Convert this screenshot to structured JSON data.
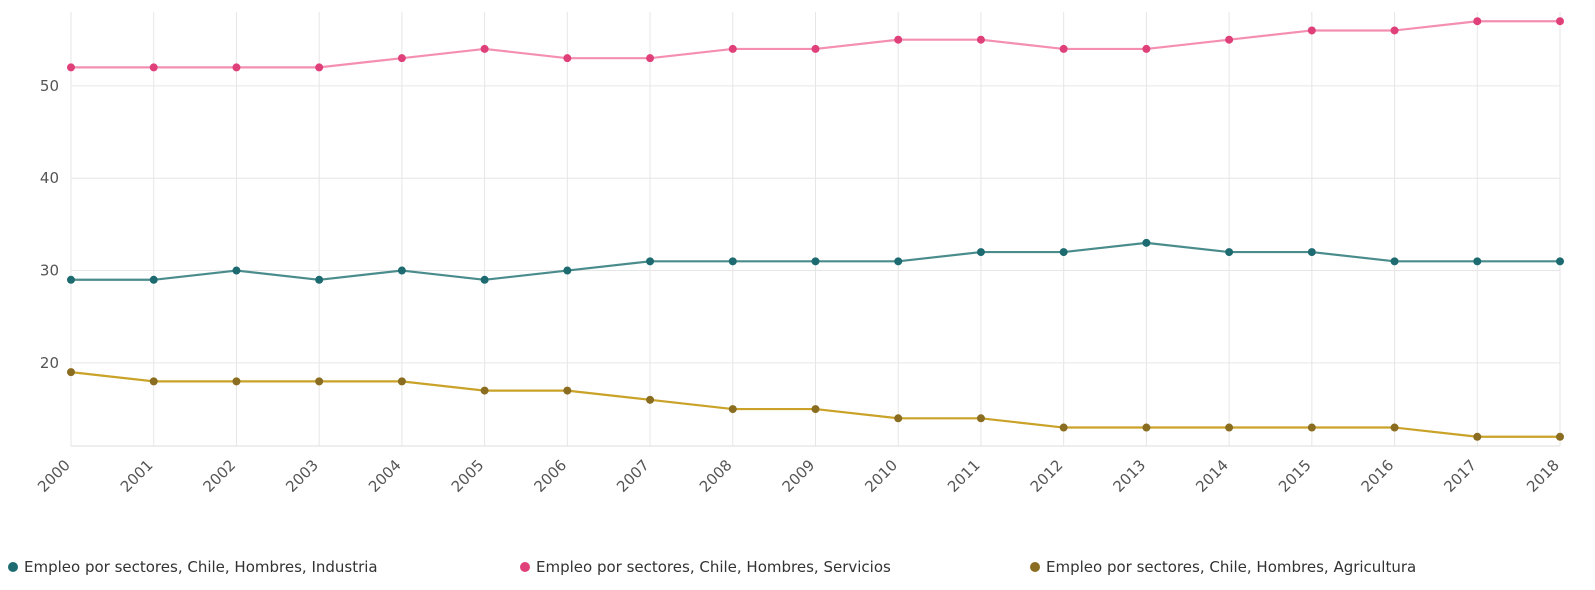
{
  "chart_data": {
    "type": "line",
    "x": [
      "2000",
      "2001",
      "2002",
      "2003",
      "2004",
      "2005",
      "2006",
      "2007",
      "2008",
      "2009",
      "2010",
      "2011",
      "2012",
      "2013",
      "2014",
      "2015",
      "2016",
      "2017",
      "2018"
    ],
    "ylim": [
      11,
      58
    ],
    "yticks": [
      20,
      30,
      40,
      50
    ],
    "grid": true,
    "legend_position": "bottom",
    "series": [
      {
        "name": "Empleo por sectores, Chile, Hombres, Industria",
        "line_color": "#4a8c8c",
        "dot_color": "#1d6b70",
        "values": [
          29,
          29,
          30,
          29,
          30,
          29,
          30,
          31,
          31,
          31,
          31,
          32,
          32,
          33,
          32,
          32,
          31,
          31,
          31
        ]
      },
      {
        "name": "Empleo por sectores, Chile, Hombres, Servicios",
        "line_color": "#f48fb1",
        "dot_color": "#e0407a",
        "values": [
          52,
          52,
          52,
          52,
          53,
          54,
          53,
          53,
          54,
          54,
          55,
          55,
          54,
          54,
          55,
          56,
          56,
          57,
          57
        ]
      },
      {
        "name": "Empleo por sectores, Chile, Hombres, Agricultura",
        "line_color": "#c9a227",
        "dot_color": "#8a6d20",
        "values": [
          19,
          18,
          18,
          18,
          18,
          17,
          17,
          16,
          15,
          15,
          14,
          14,
          13,
          13,
          13,
          13,
          13,
          12,
          12
        ]
      }
    ]
  }
}
